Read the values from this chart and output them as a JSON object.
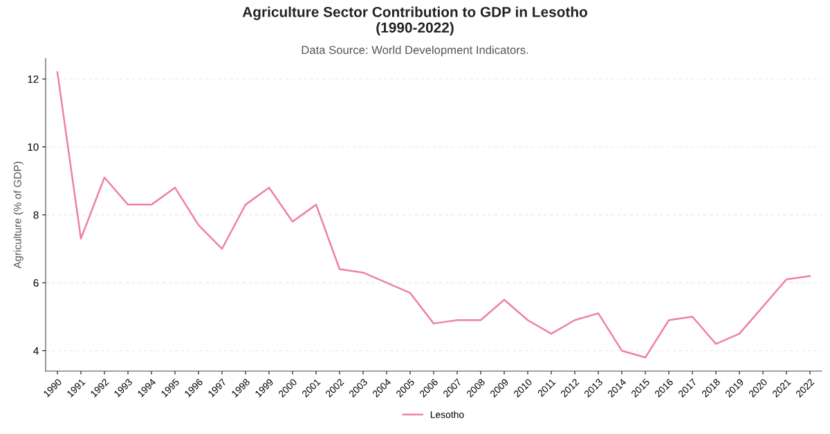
{
  "chart_data": {
    "type": "line",
    "title": "Agriculture Sector Contribution to GDP in Lesotho\n(1990-2022)",
    "subtitle": "Data Source: World Development Indicators.",
    "ylabel": "Agriculture (% of GDP)",
    "categories": [
      "1990",
      "1991",
      "1992",
      "1993",
      "1994",
      "1995",
      "1996",
      "1997",
      "1998",
      "1999",
      "2000",
      "2001",
      "2002",
      "2003",
      "2004",
      "2005",
      "2006",
      "2007",
      "2008",
      "2009",
      "2010",
      "2011",
      "2012",
      "2013",
      "2014",
      "2015",
      "2016",
      "2017",
      "2018",
      "2019",
      "2020",
      "2021",
      "2022"
    ],
    "series": [
      {
        "name": "Lesotho",
        "color": "#ef7fab",
        "values": [
          12.2,
          7.3,
          9.1,
          8.3,
          8.3,
          8.8,
          7.7,
          7.0,
          8.3,
          8.8,
          7.8,
          8.3,
          6.4,
          6.3,
          6.0,
          5.7,
          4.8,
          4.9,
          4.9,
          5.5,
          4.9,
          4.5,
          4.9,
          5.1,
          4.0,
          3.8,
          4.9,
          5.0,
          4.2,
          4.5,
          5.3,
          6.1,
          6.2
        ]
      }
    ],
    "ylim": [
      3.4,
      12.6
    ],
    "yticks": [
      4,
      6,
      8,
      10,
      12
    ],
    "grid": "y",
    "legend": "bottom",
    "marker": "none",
    "line_style": "solid"
  }
}
